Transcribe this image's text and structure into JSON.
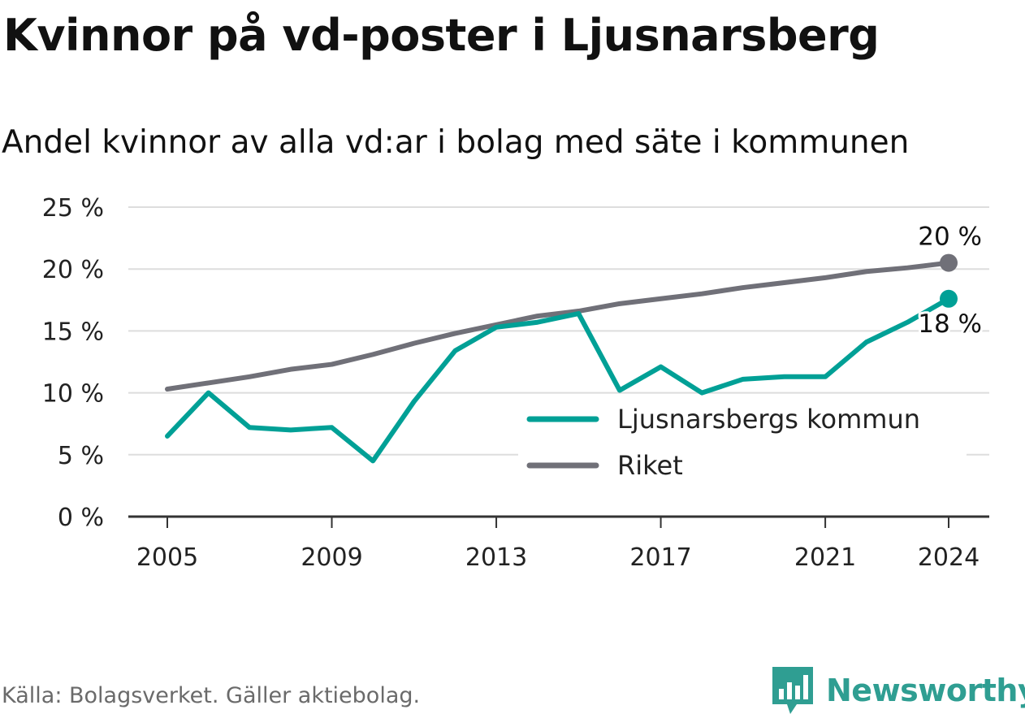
{
  "title": "Kvinnor på vd-poster i Ljusnarsberg",
  "subtitle": "Andel kvinnor av alla vd:ar i bolag med säte i kommunen",
  "source": "Källa: Bolagsverket. Gäller aktiebolag.",
  "brand": {
    "name": "Newsworthy",
    "color": "#2f9e92",
    "icon": "newsworthy-chart-icon"
  },
  "colors": {
    "ljusnarsberg": "#00a096",
    "riket": "#707078",
    "grid": "#dddddd",
    "axis": "#333333"
  },
  "chart_data": {
    "type": "line",
    "x": [
      2005,
      2006,
      2007,
      2008,
      2009,
      2010,
      2011,
      2012,
      2013,
      2014,
      2015,
      2016,
      2017,
      2018,
      2019,
      2020,
      2021,
      2022,
      2023,
      2024
    ],
    "x_ticks": [
      "2005",
      "2009",
      "2013",
      "2017",
      "2021",
      "2024"
    ],
    "y_ticks": [
      "0 %",
      "5 %",
      "10 %",
      "15 %",
      "20 %",
      "25 %"
    ],
    "ylim": [
      0,
      25
    ],
    "grid": true,
    "legend_position": "lower-right",
    "series": [
      {
        "name": "Ljusnarsbergs kommun",
        "color": "#00a096",
        "values": [
          6.5,
          10.0,
          7.2,
          7.0,
          7.2,
          4.5,
          9.3,
          13.4,
          15.3,
          15.7,
          16.4,
          10.2,
          12.1,
          10.0,
          11.1,
          11.3,
          11.3,
          14.1,
          15.7,
          17.6
        ],
        "end_label": "18 %"
      },
      {
        "name": "Riket",
        "color": "#707078",
        "values": [
          10.3,
          10.8,
          11.3,
          11.9,
          12.3,
          13.1,
          14.0,
          14.8,
          15.5,
          16.2,
          16.6,
          17.2,
          17.6,
          18.0,
          18.5,
          18.9,
          19.3,
          19.8,
          20.1,
          20.5
        ],
        "end_label": "20 %"
      }
    ]
  }
}
